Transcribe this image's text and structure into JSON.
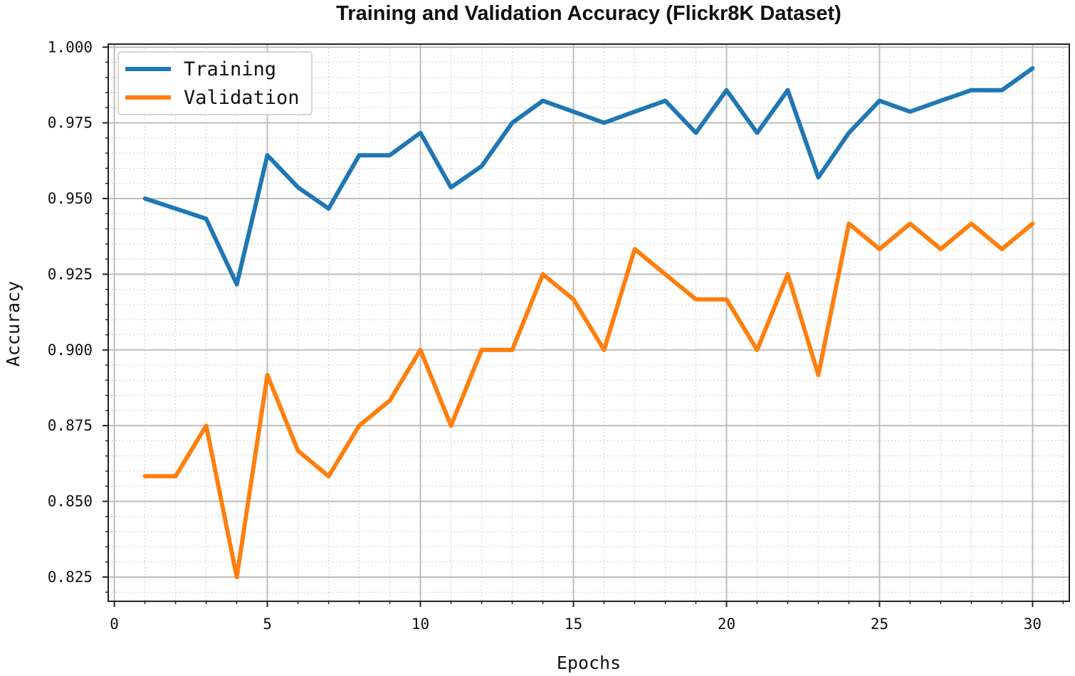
{
  "chart_data": {
    "type": "line",
    "title": "Training and Validation Accuracy (Flickr8K Dataset)",
    "xlabel": "Epochs",
    "ylabel": "Accuracy",
    "xlim": [
      -0.2,
      31.2
    ],
    "ylim": [
      0.817,
      1.001
    ],
    "xticks": [
      0,
      5,
      10,
      15,
      20,
      25,
      30
    ],
    "xtick_labels": [
      "0",
      "5",
      "10",
      "15",
      "20",
      "25",
      "30"
    ],
    "yticks": [
      0.825,
      0.85,
      0.875,
      0.9,
      0.925,
      0.95,
      0.975,
      1.0
    ],
    "ytick_labels": [
      "0.825",
      "0.850",
      "0.875",
      "0.900",
      "0.925",
      "0.950",
      "0.975",
      "1.000"
    ],
    "grid": true,
    "minor_grid": true,
    "legend_position": "upper-left",
    "x": [
      1,
      2,
      3,
      4,
      5,
      6,
      7,
      8,
      9,
      10,
      11,
      12,
      13,
      14,
      15,
      16,
      17,
      18,
      19,
      20,
      21,
      22,
      23,
      24,
      25,
      26,
      27,
      28,
      29,
      30
    ],
    "series": [
      {
        "name": "Training",
        "color": "#1f77b4",
        "values": [
          0.95,
          0.9467,
          0.9433,
          0.9217,
          0.9643,
          0.9537,
          0.9467,
          0.9643,
          0.9643,
          0.9717,
          0.9537,
          0.9607,
          0.975,
          0.9823,
          0.9787,
          0.975,
          0.9787,
          0.9823,
          0.9717,
          0.9858,
          0.9717,
          0.9858,
          0.957,
          0.9717,
          0.9823,
          0.9787,
          0.9823,
          0.9858,
          0.9858,
          0.993
        ]
      },
      {
        "name": "Validation",
        "color": "#ff7f0e",
        "values": [
          0.8583,
          0.8583,
          0.875,
          0.825,
          0.8917,
          0.8667,
          0.8583,
          0.875,
          0.8833,
          0.9,
          0.875,
          0.9,
          0.9,
          0.925,
          0.9167,
          0.9,
          0.9333,
          0.925,
          0.9167,
          0.9167,
          0.9,
          0.925,
          0.8917,
          0.9417,
          0.9333,
          0.9417,
          0.9333,
          0.9417,
          0.9333,
          0.9417
        ]
      }
    ]
  }
}
